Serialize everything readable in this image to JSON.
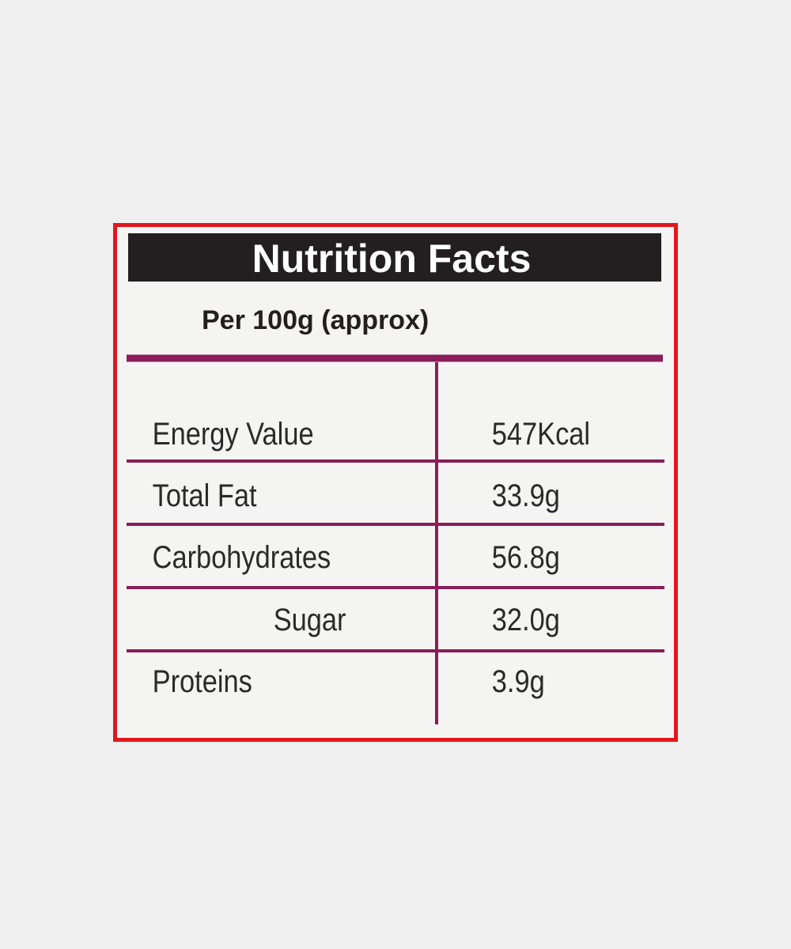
{
  "header": {
    "title": "Nutrition Facts",
    "subtitle": "Per 100g (approx)"
  },
  "table": {
    "rows": [
      [
        "Energy Value",
        "547Kcal"
      ],
      [
        "Total Fat",
        "33.9g"
      ],
      [
        "Carbohydrates",
        "56.8g"
      ],
      [
        "Sugar",
        "32.0g"
      ],
      [
        "Proteins",
        "3.9g"
      ]
    ]
  }
}
